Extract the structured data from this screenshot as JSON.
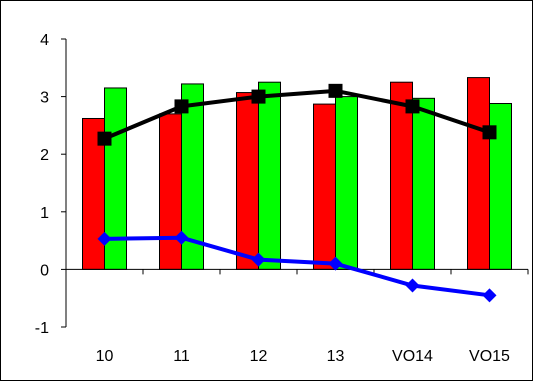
{
  "chart_data": {
    "type": "bar",
    "categories": [
      "10",
      "11",
      "12",
      "13",
      "VO14",
      "VO15"
    ],
    "ylim": [
      -1,
      4
    ],
    "yticks": [
      -1,
      0,
      1,
      2,
      3,
      4
    ],
    "grid": false,
    "series": [
      {
        "type": "bar",
        "color": "#ff0000",
        "values": [
          2.62,
          2.7,
          3.07,
          2.87,
          3.25,
          3.33
        ]
      },
      {
        "type": "bar",
        "color": "#00ff00",
        "values": [
          3.15,
          3.22,
          3.25,
          3.0,
          2.97,
          2.88
        ]
      },
      {
        "type": "line",
        "color": "#000000",
        "marker": "square",
        "values": [
          2.27,
          2.83,
          3.0,
          3.1,
          2.83,
          2.38
        ]
      },
      {
        "type": "line",
        "color": "#0000ff",
        "marker": "diamond",
        "values": [
          0.53,
          0.55,
          0.17,
          0.1,
          -0.28,
          -0.45
        ]
      }
    ]
  }
}
